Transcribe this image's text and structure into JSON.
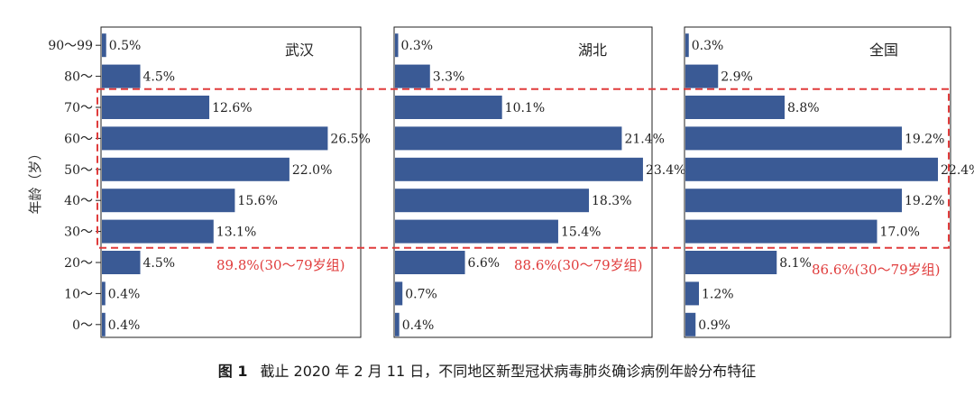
{
  "chart_data": {
    "type": "bar",
    "orientation": "horizontal",
    "ylabel": "年龄（岁）",
    "categories": [
      "90～99",
      "80～",
      "70～",
      "60～",
      "50～",
      "40～",
      "30～",
      "20～",
      "10～",
      "0～"
    ],
    "unit": "%",
    "series": [
      {
        "name": "武汉",
        "values": [
          0.5,
          4.5,
          12.6,
          26.5,
          22.0,
          15.6,
          13.1,
          4.5,
          0.4,
          0.4
        ]
      },
      {
        "name": "湖北",
        "values": [
          0.3,
          3.3,
          10.1,
          21.4,
          23.4,
          18.3,
          15.4,
          6.6,
          0.7,
          0.4
        ]
      },
      {
        "name": "全国",
        "values": [
          0.3,
          2.9,
          8.8,
          19.2,
          22.4,
          19.2,
          17.0,
          8.1,
          1.2,
          0.9
        ]
      }
    ],
    "annotations": [
      "89.8%(30～79岁组)",
      "88.6%(30～79岁组)",
      "86.6%(30～79岁组)"
    ],
    "highlight_range": [
      "30～",
      "70～"
    ],
    "bar_color": "#3a5a95",
    "highlight_color": "#e03c3c"
  },
  "caption": {
    "label": "图 1",
    "text": "截止 2020 年 2 月 11 日，不同地区新型冠状病毒肺炎确诊病例年龄分布特征"
  }
}
